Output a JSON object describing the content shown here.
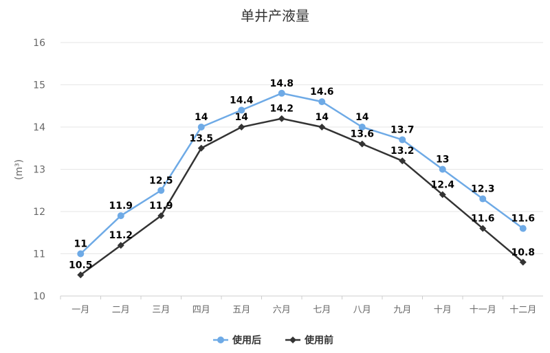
{
  "chart_data": {
    "type": "line",
    "title": "单井产液量",
    "xlabel": "",
    "ylabel": "(m³)",
    "categories": [
      "一月",
      "二月",
      "三月",
      "四月",
      "五月",
      "六月",
      "七月",
      "八月",
      "九月",
      "十月",
      "十一月",
      "十二月"
    ],
    "ylim": [
      10,
      16
    ],
    "yticks": [
      10,
      11,
      12,
      13,
      14,
      15,
      16
    ],
    "grid": true,
    "legend_position": "bottom",
    "series": [
      {
        "name": "使用后",
        "color": "#6eaae6",
        "marker": "circle",
        "values": [
          11,
          11.9,
          12.5,
          14,
          14.4,
          14.8,
          14.6,
          14,
          13.7,
          13,
          12.3,
          11.6
        ]
      },
      {
        "name": "使用前",
        "color": "#333333",
        "marker": "diamond",
        "values": [
          10.5,
          11.2,
          11.9,
          13.5,
          14,
          14.2,
          14,
          13.6,
          13.2,
          12.4,
          11.6,
          10.8
        ]
      }
    ]
  }
}
